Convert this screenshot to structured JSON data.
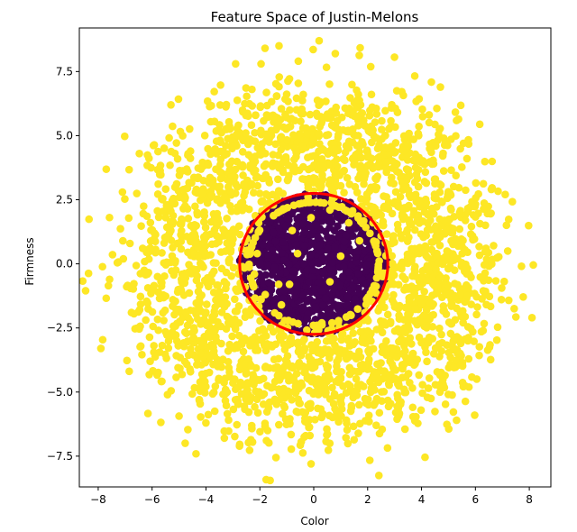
{
  "chart_data": {
    "type": "scatter",
    "title": "Feature Space of Justin-Melons",
    "xlabel": "Color",
    "ylabel": "Firmness",
    "xlim": [
      -8.7,
      8.8
    ],
    "ylim": [
      -8.7,
      9.2
    ],
    "xticks": [
      -8,
      -6,
      -4,
      -2,
      0,
      2,
      4,
      6,
      8
    ],
    "xtick_labels": [
      "−8",
      "−6",
      "−4",
      "−2",
      "0",
      "2",
      "4",
      "6",
      "8"
    ],
    "yticks": [
      -7.5,
      -5.0,
      -2.5,
      0.0,
      2.5,
      5.0,
      7.5
    ],
    "ytick_labels": [
      "−7.5",
      "−5.0",
      "−2.5",
      "0.0",
      "2.5",
      "5.0",
      "7.5"
    ],
    "grid": false,
    "series": [
      {
        "color": "#440154",
        "distribution": "filled disk",
        "center": [
          0,
          0
        ],
        "radius": 2.75,
        "point_count": 1200
      },
      {
        "color": "#fde725",
        "distribution": "annulus",
        "center": [
          0,
          0
        ],
        "inner_radius": 2.4,
        "outer_radius": 8.6,
        "point_count": 2600,
        "scattered_points": [
          [
            -0.6,
            0.4
          ],
          [
            -1.3,
            -0.8
          ],
          [
            -0.9,
            -0.8
          ],
          [
            0.6,
            -0.7
          ],
          [
            1.0,
            0.3
          ],
          [
            -2.1,
            0.4
          ],
          [
            -1.2,
            -1.6
          ],
          [
            -0.1,
            1.8
          ],
          [
            1.3,
            1.6
          ],
          [
            1.7,
            0.9
          ],
          [
            -1.8,
            -1.2
          ],
          [
            0.3,
            -2.3
          ],
          [
            -0.8,
            1.3
          ],
          [
            1.9,
            -1.9
          ],
          [
            -2.2,
            -0.4
          ],
          [
            2.2,
            1.6
          ],
          [
            0.6,
            2.1
          ],
          [
            -1.5,
            2.3
          ]
        ],
        "outliers": [
          [
            0.2,
            8.7
          ],
          [
            -2.9,
            7.8
          ],
          [
            8.1,
            -2.1
          ],
          [
            -7.9,
            -3.3
          ],
          [
            0.8,
            8.2
          ],
          [
            -0.1,
            -7.8
          ],
          [
            7.2,
            0.5
          ],
          [
            -7.1,
            2.8
          ],
          [
            5.3,
            -6.1
          ],
          [
            -5.3,
            6.2
          ]
        ]
      }
    ],
    "annotations": [
      {
        "type": "circle",
        "center": [
          0,
          0
        ],
        "radius": 2.75,
        "color": "#ff0000"
      }
    ]
  }
}
